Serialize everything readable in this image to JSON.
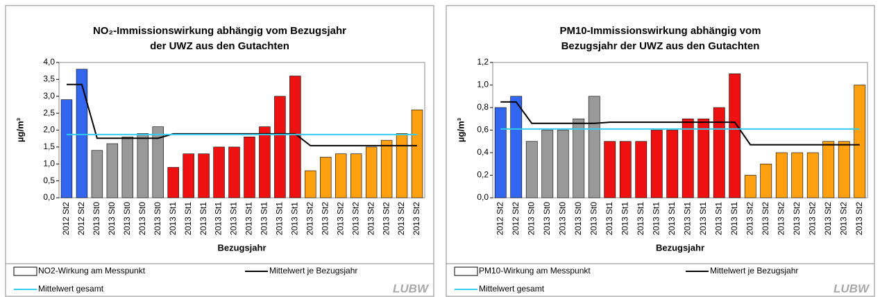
{
  "chart_data": [
    {
      "type": "bar",
      "title": [
        "NO₂-Immissionswirkung abhängig vom Bezugsjahr",
        "der UWZ aus den Gutachten"
      ],
      "y_label": "µg/m³",
      "x_label": "Bezugsjahr",
      "logo": "LUBW",
      "categories": [
        "2012 St2",
        "2012 St2",
        "2013 St0",
        "2013 St0",
        "2013 St0",
        "2013 St0",
        "2013 St0",
        "2013 St1",
        "2013 St1",
        "2013 St1",
        "2013 St1",
        "2013 St1",
        "2013 St1",
        "2013 St1",
        "2013 St1",
        "2013 St1",
        "2013 St2",
        "2013 St2",
        "2013 St2",
        "2013 St2",
        "2013 St2",
        "2013 St2",
        "2013 St2",
        "2013 St2"
      ],
      "series": [
        {
          "name": "NO2-Wirkung am Messpunkt",
          "colors": [
            "#3366ee",
            "#3366ee",
            "#999999",
            "#999999",
            "#999999",
            "#999999",
            "#999999",
            "#ee1111",
            "#ee1111",
            "#ee1111",
            "#ee1111",
            "#ee1111",
            "#ee1111",
            "#ee1111",
            "#ee1111",
            "#ee1111",
            "#ffa011",
            "#ffa011",
            "#ffa011",
            "#ffa011",
            "#ffa011",
            "#ffa011",
            "#ffa011",
            "#ffa011"
          ],
          "values": [
            2.9,
            3.8,
            1.4,
            1.6,
            1.8,
            1.9,
            2.1,
            0.9,
            1.3,
            1.3,
            1.5,
            1.5,
            1.8,
            2.1,
            3.0,
            3.6,
            0.8,
            1.2,
            1.3,
            1.3,
            1.5,
            1.7,
            1.9,
            2.6
          ]
        },
        {
          "name": "Mittelwert je Bezugsjahr",
          "type": "line",
          "color": "#000000",
          "values": [
            3.35,
            3.35,
            1.76,
            1.76,
            1.76,
            1.76,
            1.76,
            1.89,
            1.89,
            1.89,
            1.89,
            1.89,
            1.89,
            1.89,
            1.89,
            1.89,
            1.54,
            1.54,
            1.54,
            1.54,
            1.54,
            1.54,
            1.54,
            1.54
          ]
        },
        {
          "name": "Mittelwert gesamt",
          "type": "line",
          "color": "#33ccee",
          "values": [
            1.87,
            1.87,
            1.87,
            1.87,
            1.87,
            1.87,
            1.87,
            1.87,
            1.87,
            1.87,
            1.87,
            1.87,
            1.87,
            1.87,
            1.87,
            1.87,
            1.87,
            1.87,
            1.87,
            1.87,
            1.87,
            1.87,
            1.87,
            1.87
          ]
        }
      ],
      "ylim": [
        0,
        4
      ],
      "yticks": [
        {
          "value": 0,
          "label": "0,0"
        },
        {
          "value": 0.5,
          "label": "0,5"
        },
        {
          "value": 1,
          "label": "1,0"
        },
        {
          "value": 1.5,
          "label": "1,5"
        },
        {
          "value": 2,
          "label": "2,0"
        },
        {
          "value": 2.5,
          "label": "2,5"
        },
        {
          "value": 3,
          "label": "3,0"
        },
        {
          "value": 3.5,
          "label": "3,5"
        },
        {
          "value": 4,
          "label": "4,0"
        }
      ]
    },
    {
      "type": "bar",
      "title": [
        "PM10-Immissionswirkung abhängig vom",
        "Bezugsjahr der UWZ aus den Gutachten"
      ],
      "y_label": "µg/m³",
      "x_label": "Bezugsjahr",
      "logo": "LUBW",
      "categories": [
        "2012 St2",
        "2012 St2",
        "2013 St0",
        "2013 St0",
        "2013 St0",
        "2013 St0",
        "2013 St0",
        "2013 St1",
        "2013 St1",
        "2013 St1",
        "2013 St1",
        "2013 St1",
        "2013 St1",
        "2013 St1",
        "2013 St1",
        "2013 St1",
        "2013 St2",
        "2013 St2",
        "2013 St2",
        "2013 St2",
        "2013 St2",
        "2013 St2",
        "2013 St2",
        "2013 St2"
      ],
      "series": [
        {
          "name": "PM10-Wirkung am Messpunkt",
          "colors": [
            "#3366ee",
            "#3366ee",
            "#999999",
            "#999999",
            "#999999",
            "#999999",
            "#999999",
            "#ee1111",
            "#ee1111",
            "#ee1111",
            "#ee1111",
            "#ee1111",
            "#ee1111",
            "#ee1111",
            "#ee1111",
            "#ee1111",
            "#ffa011",
            "#ffa011",
            "#ffa011",
            "#ffa011",
            "#ffa011",
            "#ffa011",
            "#ffa011",
            "#ffa011"
          ],
          "values": [
            0.8,
            0.9,
            0.5,
            0.6,
            0.6,
            0.7,
            0.9,
            0.5,
            0.5,
            0.5,
            0.6,
            0.6,
            0.7,
            0.7,
            0.8,
            1.1,
            0.2,
            0.3,
            0.4,
            0.4,
            0.4,
            0.5,
            0.5,
            1.0
          ]
        },
        {
          "name": "Mittelwert je Bezugsjahr",
          "type": "line",
          "color": "#000000",
          "values": [
            0.85,
            0.85,
            0.66,
            0.66,
            0.66,
            0.66,
            0.66,
            0.67,
            0.67,
            0.67,
            0.67,
            0.67,
            0.67,
            0.67,
            0.67,
            0.67,
            0.47,
            0.47,
            0.47,
            0.47,
            0.47,
            0.47,
            0.47,
            0.47
          ]
        },
        {
          "name": "Mittelwert gesamt",
          "type": "line",
          "color": "#33ccee",
          "values": [
            0.61,
            0.61,
            0.61,
            0.61,
            0.61,
            0.61,
            0.61,
            0.61,
            0.61,
            0.61,
            0.61,
            0.61,
            0.61,
            0.61,
            0.61,
            0.61,
            0.61,
            0.61,
            0.61,
            0.61,
            0.61,
            0.61,
            0.61,
            0.61
          ]
        }
      ],
      "ylim": [
        0,
        1.2
      ],
      "yticks": [
        {
          "value": 0,
          "label": "0,0"
        },
        {
          "value": 0.2,
          "label": "0,2"
        },
        {
          "value": 0.4,
          "label": "0,4"
        },
        {
          "value": 0.6,
          "label": "0,6"
        },
        {
          "value": 0.8,
          "label": "0,8"
        },
        {
          "value": 1,
          "label": "1,0"
        },
        {
          "value": 1.2,
          "label": "1,2"
        }
      ]
    }
  ]
}
